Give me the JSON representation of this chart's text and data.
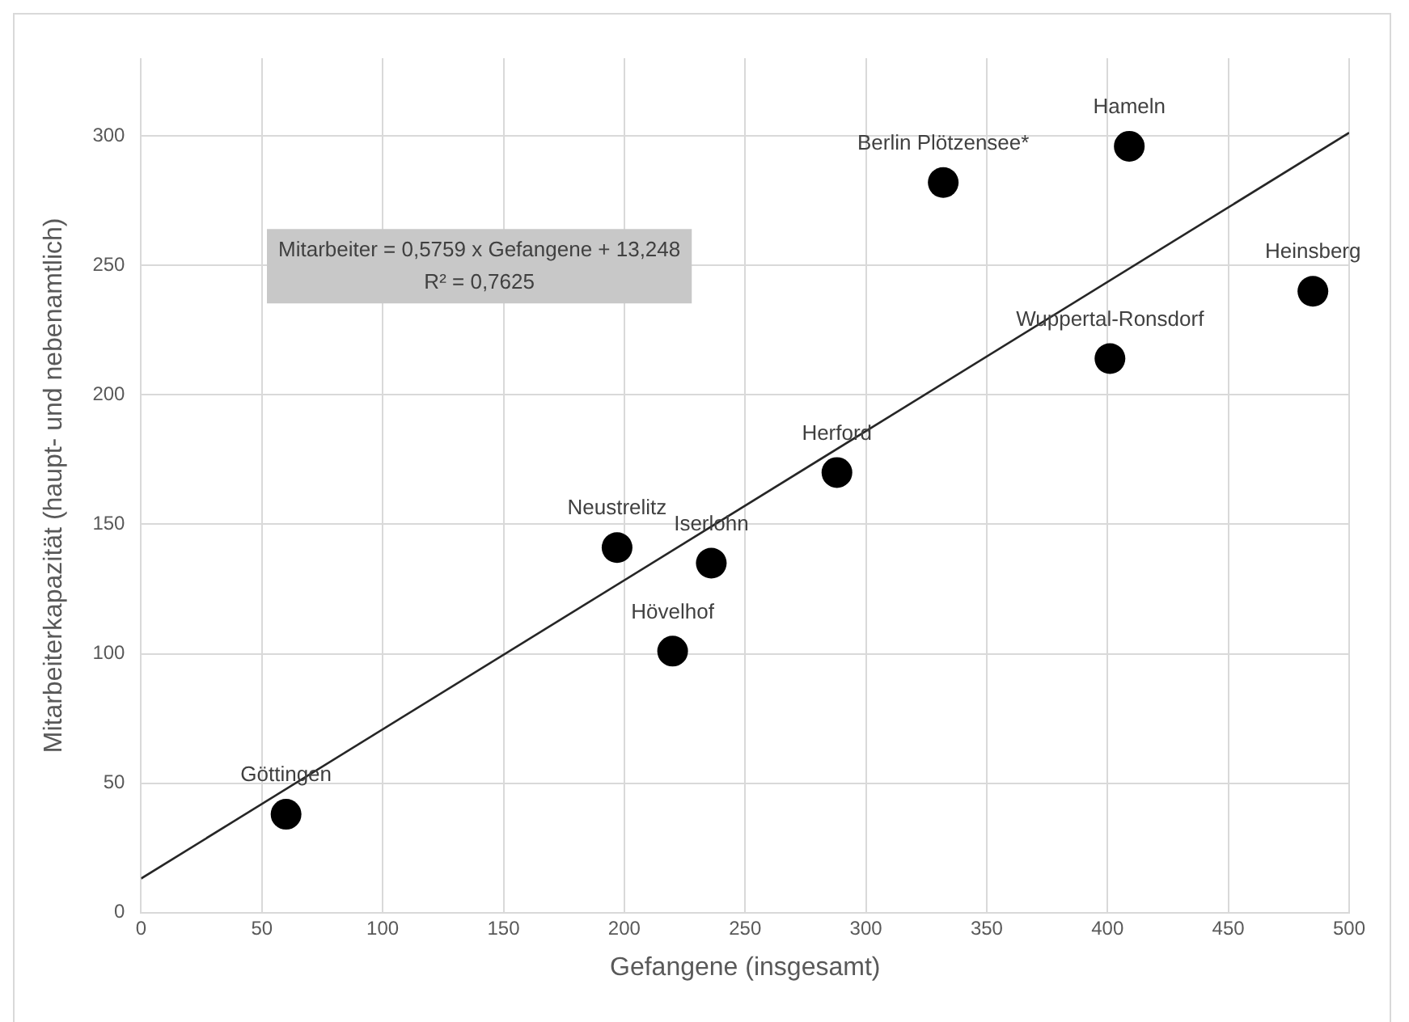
{
  "chart_data": {
    "type": "scatter",
    "xlabel": "Gefangene (insgesamt)",
    "ylabel": "Mitarbeiterkapazität (haupt- und nebenamtlich)",
    "x": [
      60,
      197,
      220,
      236,
      288,
      332,
      409,
      401,
      485
    ],
    "series": [
      {
        "type": "scatter",
        "color": "#000000",
        "values": [
          38,
          141,
          101,
          135,
          170,
          282,
          296,
          214,
          240
        ]
      },
      {
        "type": "line",
        "color": "#262626",
        "x": [
          0,
          500
        ],
        "values": [
          13.2,
          301.2
        ],
        "marker": "none"
      }
    ],
    "xlim": [
      0,
      500
    ],
    "xticks": [
      0,
      50,
      100,
      150,
      200,
      250,
      300,
      350,
      400,
      450,
      500
    ],
    "ylim": [
      0,
      330
    ],
    "yticks": [
      0,
      50,
      100,
      150,
      200,
      250,
      300
    ],
    "grid": true,
    "legend": false,
    "marker": "circle",
    "annotations": [
      {
        "text": "Göttingen",
        "x": 60,
        "y": 38
      },
      {
        "text": "Neustrelitz",
        "x": 197,
        "y": 141
      },
      {
        "text": "Iserlohn",
        "x": 236,
        "y": 135
      },
      {
        "text": "Hövelhof",
        "x": 220,
        "y": 101
      },
      {
        "text": "Herford",
        "x": 288,
        "y": 170
      },
      {
        "text": "Berlin Plötzensee*",
        "x": 332,
        "y": 282
      },
      {
        "text": "Hameln",
        "x": 409,
        "y": 296
      },
      {
        "text": "Wuppertal-Ronsdorf",
        "x": 401,
        "y": 214
      },
      {
        "text": "Heinsberg",
        "x": 485,
        "y": 240
      },
      "Mitarbeiter = 0,5759 x Gefangene + 13,248",
      "R² = 0,7625"
    ]
  }
}
